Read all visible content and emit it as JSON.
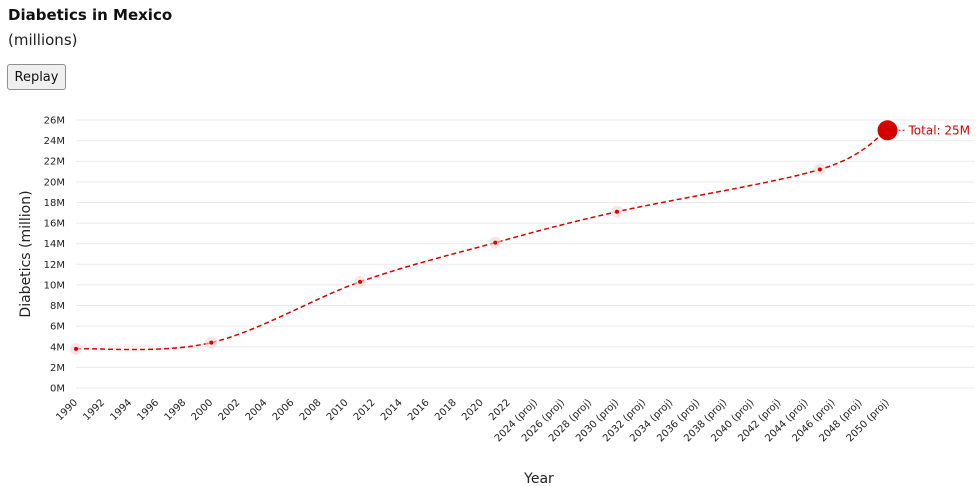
{
  "header": {
    "title": "Diabetics in Mexico",
    "subtitle": "(millions)",
    "replay_label": "Replay"
  },
  "colors": {
    "series": "#d40000",
    "halo": "#f4d6d6",
    "grid": "#ebebeb"
  },
  "chart_data": {
    "type": "line",
    "title": "Diabetics in Mexico",
    "subtitle": "(millions)",
    "xlabel": "Year",
    "ylabel": "Diabetics (million)",
    "ylim": [
      0,
      26
    ],
    "y_ticks": [
      "0M",
      "2M",
      "4M",
      "6M",
      "8M",
      "10M",
      "12M",
      "14M",
      "16M",
      "18M",
      "20M",
      "22M",
      "24M",
      "26M"
    ],
    "categories": [
      "1990",
      "1992",
      "1994",
      "1996",
      "1998",
      "2000",
      "2002",
      "2004",
      "2006",
      "2008",
      "2010",
      "2012",
      "2014",
      "2016",
      "2018",
      "2020",
      "2022",
      "2024 (proj)",
      "2026 (proj)",
      "2028 (proj)",
      "2030 (proj)",
      "2032 (proj)",
      "2034 (proj)",
      "2036 (proj)",
      "2038 (proj)",
      "2040 (proj)",
      "2042 (proj)",
      "2044 (proj)",
      "2046 (proj)",
      "2048 (proj)",
      "2050 (proj)"
    ],
    "points": [
      {
        "x": 1990,
        "y": 3.8
      },
      {
        "x": 2000,
        "y": 4.4
      },
      {
        "x": 2011,
        "y": 10.3
      },
      {
        "x": 2021,
        "y": 14.1
      },
      {
        "x": 2030,
        "y": 17.1
      },
      {
        "x": 2045,
        "y": 21.2
      },
      {
        "x": 2050,
        "y": 25
      }
    ],
    "end_label": "Total: 25M",
    "grid": true,
    "line_style": "dashed"
  }
}
